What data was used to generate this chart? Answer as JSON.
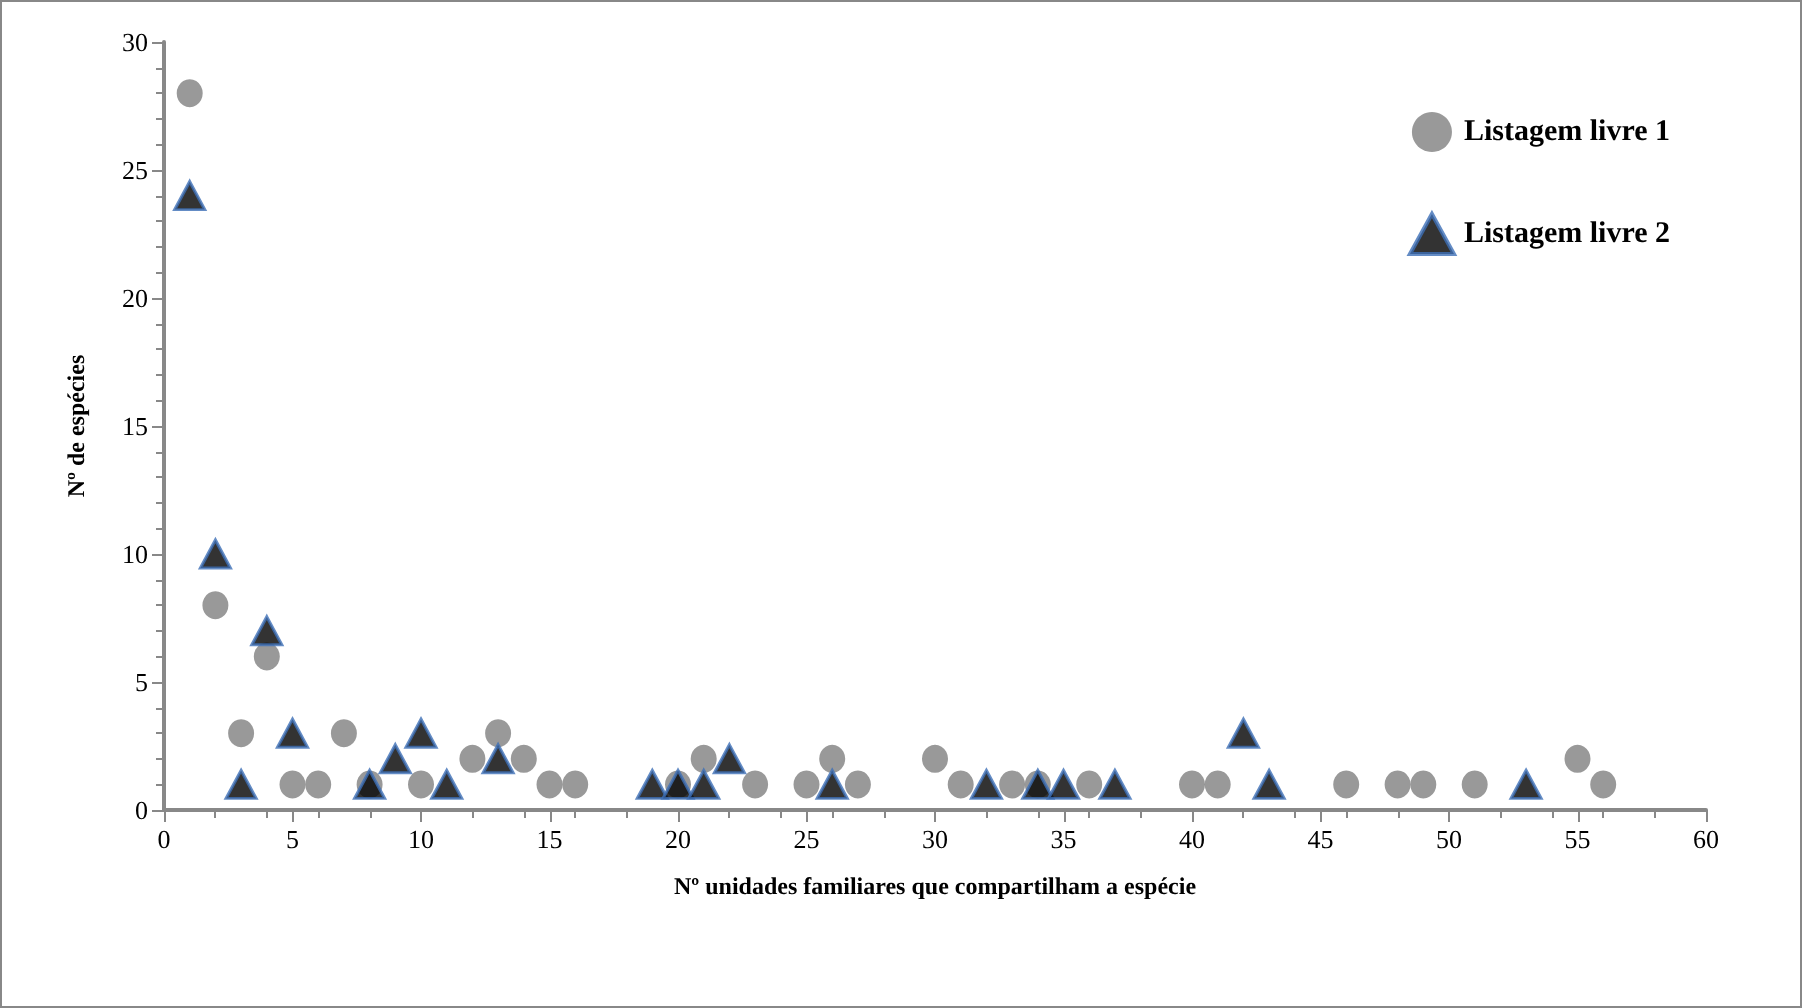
{
  "chart_data": {
    "type": "scatter",
    "xlabel": "Nº unidades familiares que compartilham a espécie",
    "ylabel": "Nº de espécies",
    "xlim": [
      0,
      60
    ],
    "xticks": [
      0,
      5,
      10,
      15,
      20,
      25,
      30,
      35,
      40,
      45,
      50,
      55,
      60
    ],
    "ylim": [
      0,
      30
    ],
    "yticks": [
      0,
      5,
      10,
      15,
      20,
      25,
      30
    ],
    "grid": false,
    "legend": "top right",
    "series": [
      {
        "name": "Listagem livre 1",
        "color": "#808080",
        "marker": "circle",
        "x": [
          1,
          2,
          3,
          4,
          5,
          6,
          7,
          8,
          10,
          12,
          13,
          14,
          15,
          16,
          20,
          21,
          23,
          25,
          26,
          27,
          30,
          31,
          33,
          34,
          36,
          40,
          41,
          46,
          48,
          49,
          51,
          55,
          56
        ],
        "values": [
          28,
          8,
          3,
          6,
          1,
          1,
          3,
          1,
          1,
          2,
          3,
          2,
          1,
          1,
          1,
          2,
          1,
          1,
          2,
          1,
          2,
          1,
          1,
          1,
          1,
          1,
          1,
          1,
          1,
          1,
          1,
          2,
          1
        ]
      },
      {
        "name": "Listagem livre 2",
        "color": "#000000",
        "marker": "triangle",
        "x": [
          1,
          2,
          3,
          4,
          5,
          8,
          9,
          10,
          11,
          13,
          19,
          20,
          21,
          22,
          26,
          32,
          34,
          35,
          37,
          42,
          43,
          53
        ],
        "values": [
          24,
          10,
          1,
          7,
          3,
          1,
          2,
          3,
          1,
          2,
          1,
          1,
          1,
          2,
          1,
          1,
          1,
          1,
          1,
          3,
          1,
          1
        ]
      }
    ]
  }
}
